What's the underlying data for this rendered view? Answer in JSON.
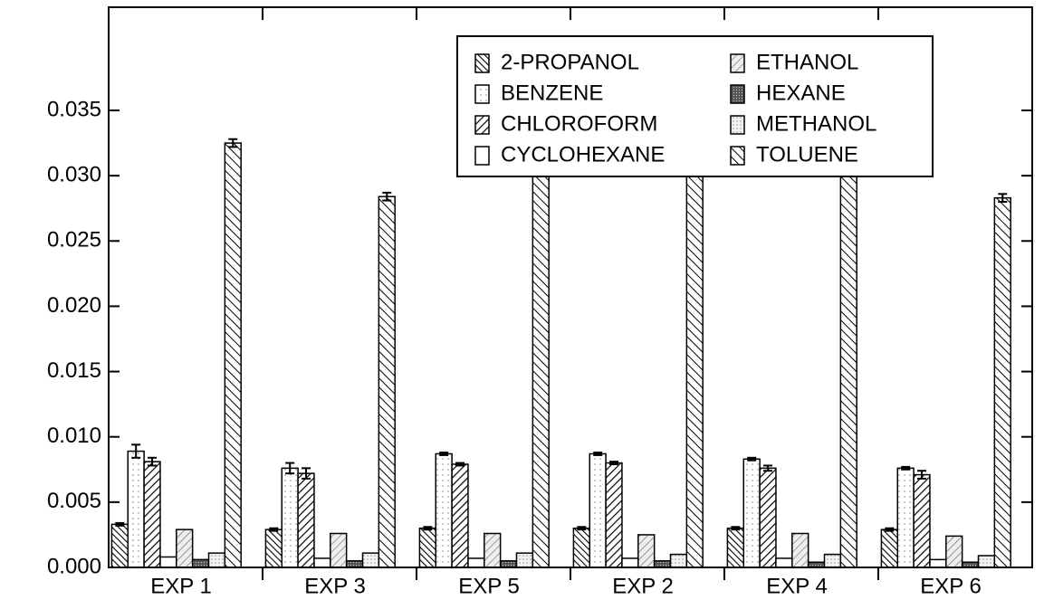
{
  "chart_data": {
    "type": "bar",
    "categories": [
      "EXP 1",
      "EXP 3",
      "EXP 5",
      "EXP 2",
      "EXP 4",
      "EXP 6"
    ],
    "series": [
      {
        "name": "2-PROPANOL",
        "values": [
          0.0033,
          0.0029,
          0.003,
          0.003,
          0.003,
          0.0029
        ],
        "errors": [
          0.0001,
          0.0001,
          0.0001,
          0.0001,
          0.0001,
          0.0001
        ]
      },
      {
        "name": "BENZENE",
        "values": [
          0.0089,
          0.0076,
          0.0087,
          0.0087,
          0.0083,
          0.0076
        ],
        "errors": [
          0.0005,
          0.0004,
          0.0001,
          0.0001,
          0.0001,
          0.0001
        ]
      },
      {
        "name": "CHLOROFORM",
        "values": [
          0.0081,
          0.0072,
          0.0079,
          0.008,
          0.0076,
          0.0071
        ],
        "errors": [
          0.0003,
          0.0004,
          0.0001,
          0.0001,
          0.0002,
          0.0003
        ]
      },
      {
        "name": "CYCLOHEXANE",
        "values": [
          0.0008,
          0.0007,
          0.0007,
          0.0007,
          0.0007,
          0.0006
        ]
      },
      {
        "name": "ETHANOL",
        "values": [
          0.0029,
          0.0026,
          0.0026,
          0.0025,
          0.0026,
          0.0024
        ]
      },
      {
        "name": "HEXANE",
        "values": [
          0.0006,
          0.0005,
          0.0005,
          0.0005,
          0.0004,
          0.0004
        ]
      },
      {
        "name": "METHANOL",
        "values": [
          0.0011,
          0.0011,
          0.0011,
          0.001,
          0.001,
          0.0009
        ]
      },
      {
        "name": "TOLUENE",
        "values": [
          0.0325,
          0.0284,
          0.0314,
          0.0319,
          0.0306,
          0.0283
        ],
        "errors": [
          0.0003,
          0.0003,
          0.0001,
          0.0001,
          0.0001,
          0.0003
        ]
      }
    ],
    "ylim": [
      0,
      0.0429
    ],
    "yticks": [
      {
        "value": 0,
        "label": "0.000"
      },
      0.005,
      {
        "value": 0.01,
        "label": "0.010"
      },
      0.015,
      {
        "value": 0.02,
        "label": "0.020"
      },
      0.025,
      {
        "value": 0.03,
        "label": "0.030"
      },
      0.035
    ],
    "legend": "top-right"
  }
}
